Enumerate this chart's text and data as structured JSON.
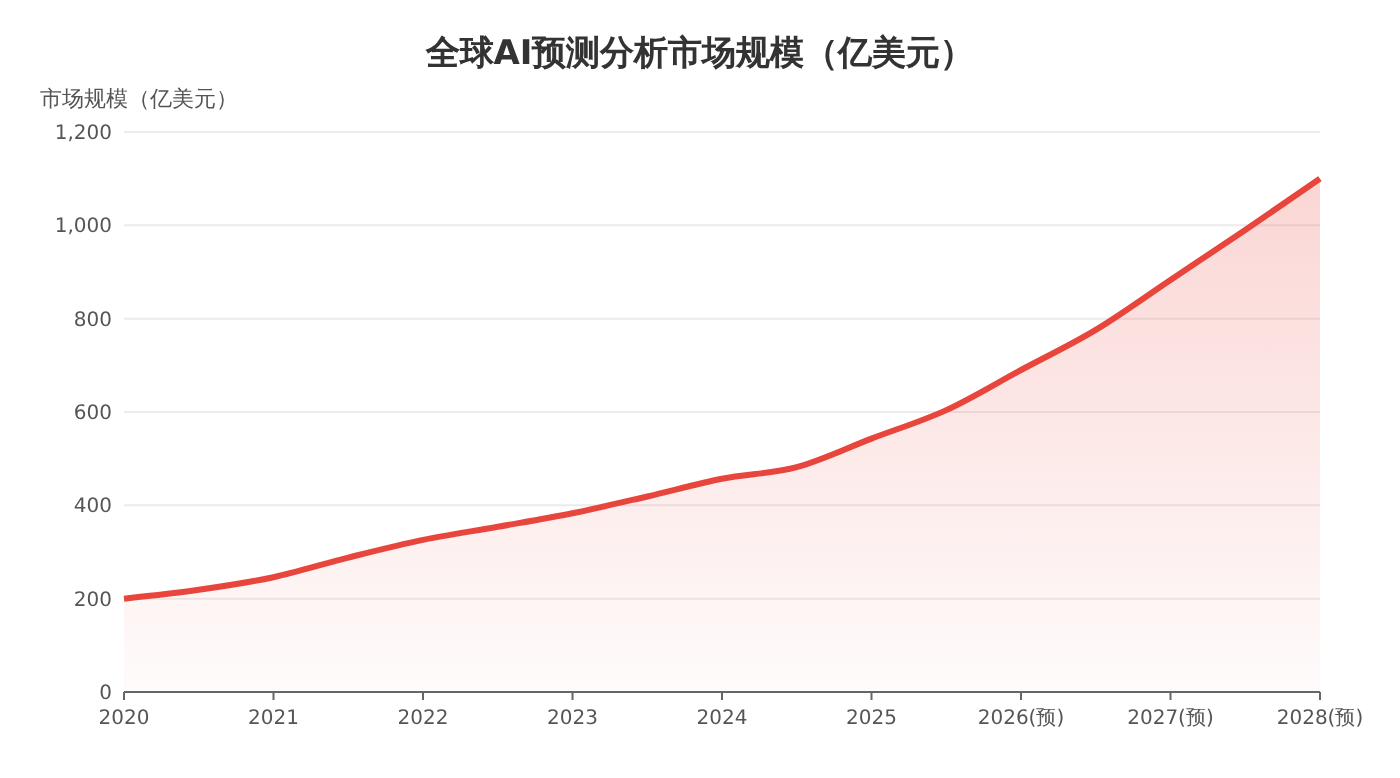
{
  "chart_data": {
    "type": "area",
    "title": "全球AI预测分析市场规模（亿美元）",
    "ylabel": "市场规模（亿美元）",
    "x": [
      2020,
      2020.5,
      2021,
      2021.5,
      2022,
      2022.5,
      2023,
      2023.5,
      2024,
      2024.5,
      2025,
      2025.5,
      2026,
      2026.5,
      2027,
      2027.5,
      2028
    ],
    "series": [
      {
        "color": "#e8453c",
        "values": [
          200,
          219,
          246,
          288,
          326,
          354,
          383,
          419,
          457,
          482,
          543,
          604,
          690,
          776,
          883,
          990,
          1100
        ]
      }
    ],
    "xlim": [
      2020,
      2028
    ],
    "xticks": [
      2020,
      2021,
      2022,
      2023,
      2024,
      2025,
      {
        "value": 2026,
        "label": "2026(预)"
      },
      {
        "value": 2027,
        "label": "2027(预)"
      },
      {
        "value": 2028,
        "label": "2028(预)"
      }
    ],
    "ylim": [
      0,
      1200
    ],
    "yticks": [
      {
        "value": 0,
        "label": "0"
      },
      {
        "value": 200,
        "label": "200"
      },
      {
        "value": 400,
        "label": "400"
      },
      {
        "value": 600,
        "label": "600"
      },
      {
        "value": 800,
        "label": "800"
      },
      {
        "value": 1000,
        "label": "1,000"
      },
      {
        "value": 1200,
        "label": "1,200"
      }
    ],
    "grid": "y",
    "marker": "none",
    "line_style": "solid"
  }
}
